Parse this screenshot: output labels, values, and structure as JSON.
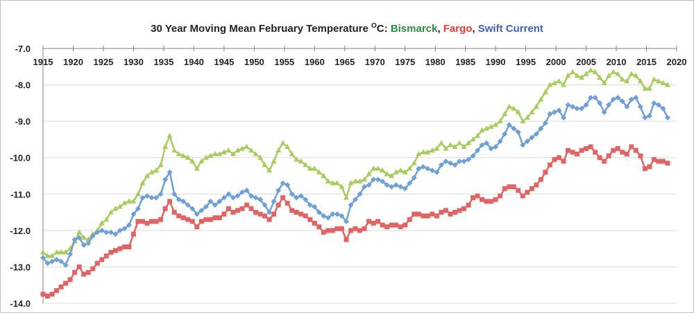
{
  "chart_data": {
    "type": "line",
    "title": {
      "prefix": "30 Year Moving Mean February  Temperature ",
      "degree": "O",
      "unit": "C:  ",
      "name_bismarck": "Bismarck",
      "sep1": ", ",
      "name_fargo": "Fargo",
      "sep2": ", ",
      "name_swift": "Swift Current"
    },
    "xlabel": "",
    "ylabel": "",
    "xlim": [
      1915,
      2020
    ],
    "ylim": [
      -14.0,
      -7.0
    ],
    "x_ticks": [
      "1915",
      "1920",
      "1925",
      "1930",
      "1935",
      "1940",
      "1945",
      "1950",
      "1955",
      "1960",
      "1965",
      "1970",
      "1975",
      "1980",
      "1985",
      "1990",
      "1995",
      "2000",
      "2005",
      "2010",
      "2015",
      "2020"
    ],
    "y_ticks": [
      "-7.0",
      "-8.0",
      "-9.0",
      "-10.0",
      "-11.0",
      "-12.0",
      "-13.0",
      "-14.0"
    ],
    "x_start": 1915,
    "grid": true,
    "colors": {
      "bismarck": "#2e8b3e",
      "fargo": "#e8382f",
      "swift": "#3f63b6"
    },
    "series": [
      {
        "name": "Bismarck",
        "color": "#a9cc60",
        "marker": "triangle",
        "values": [
          -12.6,
          -12.7,
          -12.7,
          -12.6,
          -12.6,
          -12.6,
          -12.5,
          -12.3,
          -12.05,
          -12.2,
          -12.25,
          -12.1,
          -12.0,
          -11.8,
          -11.7,
          -11.5,
          -11.4,
          -11.35,
          -11.25,
          -11.2,
          -11.2,
          -11.0,
          -10.7,
          -10.5,
          -10.4,
          -10.35,
          -10.2,
          -9.7,
          -9.4,
          -9.8,
          -9.9,
          -9.95,
          -10.0,
          -10.1,
          -10.3,
          -10.1,
          -10.0,
          -9.95,
          -9.9,
          -9.9,
          -9.85,
          -9.8,
          -9.9,
          -9.8,
          -9.75,
          -9.7,
          -9.8,
          -9.9,
          -10.0,
          -10.2,
          -10.35,
          -10.1,
          -9.8,
          -9.6,
          -9.7,
          -9.9,
          -10.05,
          -10.1,
          -10.2,
          -10.3,
          -10.3,
          -10.4,
          -10.5,
          -10.65,
          -10.7,
          -10.7,
          -10.8,
          -11.1,
          -10.7,
          -10.65,
          -10.65,
          -10.6,
          -10.45,
          -10.3,
          -10.3,
          -10.35,
          -10.45,
          -10.5,
          -10.4,
          -10.35,
          -10.4,
          -10.3,
          -10.15,
          -9.9,
          -9.85,
          -9.85,
          -9.8,
          -9.75,
          -9.6,
          -9.75,
          -9.65,
          -9.7,
          -9.6,
          -9.7,
          -9.6,
          -9.5,
          -9.4,
          -9.25,
          -9.2,
          -9.15,
          -9.1,
          -9.0,
          -8.8,
          -8.6,
          -8.65,
          -8.75,
          -9.0,
          -8.9,
          -8.75,
          -8.6,
          -8.4,
          -8.2,
          -8.0,
          -7.95,
          -7.9,
          -8.0,
          -7.75,
          -7.65,
          -7.75,
          -7.8,
          -7.7,
          -7.6,
          -7.65,
          -7.8,
          -7.95,
          -7.75,
          -7.65,
          -7.7,
          -7.85,
          -7.9,
          -7.7,
          -7.75,
          -7.9,
          -8.1,
          -8.1,
          -7.85,
          -7.9,
          -7.95,
          -8.0
        ]
      },
      {
        "name": "Swift Current",
        "color": "#6fa0d5",
        "marker": "diamond",
        "values": [
          -12.75,
          -12.9,
          -12.85,
          -12.8,
          -12.85,
          -12.95,
          -12.65,
          -12.25,
          -12.2,
          -12.4,
          -12.35,
          -12.15,
          -12.05,
          -12.0,
          -12.05,
          -12.05,
          -12.1,
          -12.0,
          -11.95,
          -11.85,
          -11.55,
          -11.4,
          -11.1,
          -11.05,
          -11.1,
          -11.1,
          -11.0,
          -10.6,
          -10.4,
          -11.0,
          -11.15,
          -11.2,
          -11.3,
          -11.4,
          -11.55,
          -11.45,
          -11.35,
          -11.2,
          -11.3,
          -11.2,
          -11.1,
          -11.0,
          -11.1,
          -11.05,
          -10.95,
          -10.9,
          -11.05,
          -11.1,
          -11.15,
          -11.3,
          -11.5,
          -11.2,
          -10.9,
          -10.7,
          -10.75,
          -11.0,
          -11.1,
          -11.05,
          -11.15,
          -11.3,
          -11.35,
          -11.5,
          -11.6,
          -11.65,
          -11.55,
          -11.55,
          -11.6,
          -11.75,
          -11.3,
          -11.15,
          -11.0,
          -10.8,
          -10.75,
          -10.6,
          -10.6,
          -10.65,
          -10.75,
          -10.8,
          -10.75,
          -10.8,
          -10.85,
          -10.7,
          -10.55,
          -10.3,
          -10.25,
          -10.3,
          -10.35,
          -10.4,
          -10.2,
          -10.1,
          -10.15,
          -10.2,
          -10.1,
          -10.1,
          -10.05,
          -9.95,
          -9.8,
          -9.65,
          -9.6,
          -9.75,
          -9.7,
          -9.55,
          -9.35,
          -9.1,
          -9.2,
          -9.3,
          -9.65,
          -9.55,
          -9.45,
          -9.35,
          -9.2,
          -9.05,
          -8.8,
          -8.75,
          -8.7,
          -8.9,
          -8.55,
          -8.6,
          -8.65,
          -8.65,
          -8.55,
          -8.35,
          -8.35,
          -8.5,
          -8.75,
          -8.55,
          -8.4,
          -8.35,
          -8.45,
          -8.6,
          -8.4,
          -8.35,
          -8.6,
          -8.9,
          -8.85,
          -8.5,
          -8.55,
          -8.65,
          -8.9
        ]
      },
      {
        "name": "Fargo",
        "color": "#e06464",
        "marker": "square",
        "values": [
          -13.75,
          -13.8,
          -13.75,
          -13.65,
          -13.55,
          -13.45,
          -13.35,
          -13.15,
          -13.0,
          -13.2,
          -13.15,
          -13.05,
          -12.9,
          -12.8,
          -12.7,
          -12.6,
          -12.55,
          -12.5,
          -12.45,
          -12.45,
          -12.1,
          -11.75,
          -11.75,
          -11.8,
          -11.75,
          -11.75,
          -11.7,
          -11.4,
          -11.2,
          -11.5,
          -11.6,
          -11.65,
          -11.7,
          -11.75,
          -11.9,
          -11.75,
          -11.7,
          -11.7,
          -11.65,
          -11.65,
          -11.55,
          -11.4,
          -11.5,
          -11.45,
          -11.4,
          -11.3,
          -11.4,
          -11.5,
          -11.55,
          -11.6,
          -11.7,
          -11.55,
          -11.3,
          -11.1,
          -11.25,
          -11.45,
          -11.5,
          -11.55,
          -11.6,
          -11.7,
          -11.8,
          -11.9,
          -12.05,
          -12.0,
          -12.0,
          -11.95,
          -11.95,
          -12.25,
          -12.0,
          -11.95,
          -12.0,
          -11.95,
          -11.75,
          -11.8,
          -11.75,
          -11.85,
          -11.9,
          -11.85,
          -11.85,
          -11.9,
          -11.85,
          -11.7,
          -11.55,
          -11.55,
          -11.6,
          -11.6,
          -11.55,
          -11.6,
          -11.5,
          -11.45,
          -11.55,
          -11.5,
          -11.45,
          -11.4,
          -11.3,
          -11.1,
          -11.05,
          -11.15,
          -11.2,
          -11.2,
          -11.15,
          -11.05,
          -10.85,
          -10.8,
          -10.8,
          -10.9,
          -11.05,
          -10.95,
          -10.85,
          -10.75,
          -10.6,
          -10.4,
          -10.2,
          -10.05,
          -10.0,
          -10.1,
          -9.8,
          -9.85,
          -9.9,
          -9.8,
          -9.75,
          -9.7,
          -9.85,
          -10.0,
          -10.1,
          -9.95,
          -9.8,
          -9.75,
          -9.85,
          -9.9,
          -9.7,
          -9.8,
          -9.95,
          -10.3,
          -10.25,
          -10.05,
          -10.1,
          -10.1,
          -10.15
        ]
      }
    ]
  }
}
